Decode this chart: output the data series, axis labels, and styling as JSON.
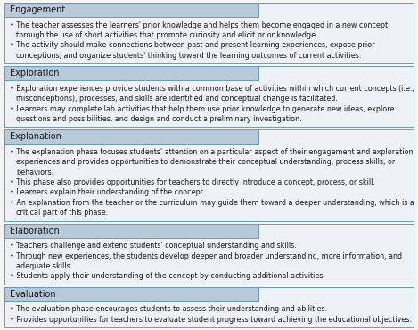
{
  "background_color": "#f5f5f5",
  "header_bg": "#b8c9d9",
  "header_border": "#6a9bbf",
  "box_bg": "#eef2f7",
  "box_border": "#6a9bbf",
  "text_color": "#1a1a1a",
  "sections": [
    {
      "header": "Engagement",
      "bullets": [
        "The teacher assesses the learners' prior knowledge and helps them become engaged in a new concept\nthrough the use of short activities that promote curiosity and elicit prior knowledge.",
        "The activity should make connections between past and present learning experiences, expose prior\nconceptions, and organize students' thinking toward the learning outcomes of current activities."
      ]
    },
    {
      "header": "Exploration",
      "bullets": [
        "Exploration experiences provide students with a common base of activities within which current concepts (i.e.,\nmisconceptions), processes, and skills are identified and conceptual change is facilitated.",
        "Learners may complete lab activities that help them use prior knowledge to generate new ideas, explore\nquestions and possibilities, and design and conduct a preliminary investigation."
      ]
    },
    {
      "header": "Explanation",
      "bullets": [
        "The explanation phase focuses students' attention on a particular aspect of their engagement and exploration\nexperiences and provides opportunities to demonstrate their conceptual understanding, process skills, or\nbehaviors.",
        "This phase also provides opportunities for teachers to directly introduce a concept, process, or skill.",
        "Learners explain their understanding of the concept.",
        "An explanation from the teacher or the curriculum may guide them toward a deeper understanding, which is a\ncritical part of this phase."
      ]
    },
    {
      "header": "Elaboration",
      "bullets": [
        "Teachers challenge and extend students' conceptual understanding and skills.",
        "Through new experiences, the students develop deeper and broader understanding, more information, and\nadequate skills.",
        "Students apply their understanding of the concept by conducting additional activities."
      ]
    },
    {
      "header": "Evaluation",
      "bullets": [
        "The evaluation phase encourages students to assess their understanding and abilities.",
        "Provides opportunities for teachers to evaluate student progress toward achieving the educational objectives."
      ]
    }
  ]
}
